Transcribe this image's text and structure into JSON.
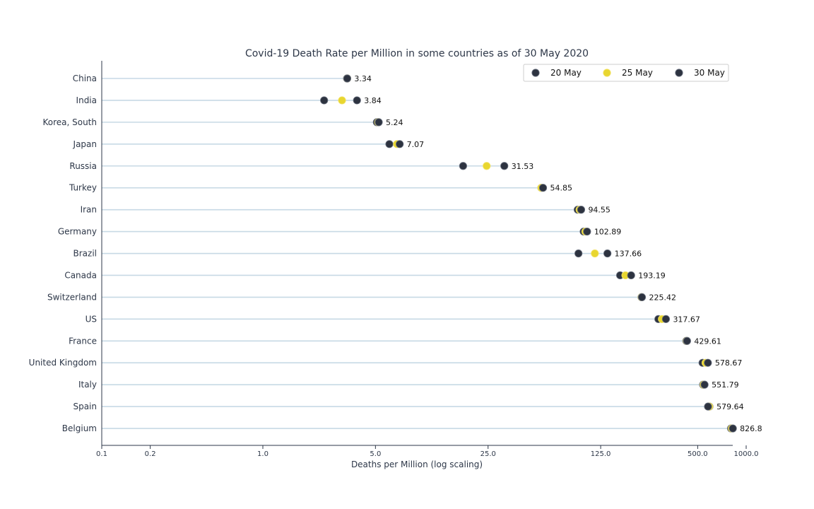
{
  "chart_data": {
    "type": "scatter",
    "title": "Covid-19 Death Rate per Million in some countries as of 30 May 2020",
    "xlabel": "Deaths per Million (log scaling)",
    "ylabel": "",
    "xscale": "log",
    "xlim": [
      0.1,
      1250
    ],
    "xticks": [
      0.1,
      0.2,
      1.0,
      5.0,
      25.0,
      125.0,
      500.0,
      1000.0
    ],
    "xtick_labels": [
      "0.1",
      "0.2",
      "1.0",
      "5.0",
      "25.0",
      "125.0",
      "500.0",
      "1000.0"
    ],
    "grid": "horizontal guide line per country",
    "legend_position": "top-right",
    "categories": [
      "China",
      "India",
      "Korea, South",
      "Japan",
      "Russia",
      "Turkey",
      "Iran",
      "Germany",
      "Brazil",
      "Canada",
      "Switzerland",
      "US",
      "France",
      "United Kingdom",
      "Italy",
      "Spain",
      "Belgium"
    ],
    "series": [
      {
        "name": "20 May",
        "color": "#2d3340",
        "values": [
          3.33,
          2.4,
          5.1,
          6.1,
          17.5,
          53.5,
          90.0,
          98.0,
          91.0,
          165.0,
          224.0,
          285.0,
          425.0,
          536.0,
          540.0,
          592.0,
          805.0
        ]
      },
      {
        "name": "25 May",
        "color": "#e8d630",
        "values": [
          3.34,
          3.1,
          5.2,
          6.8,
          24.5,
          53.5,
          92.5,
          100.5,
          115.0,
          178.0,
          224.5,
          300.0,
          428.0,
          560.0,
          545.0,
          590.0,
          815.0
        ]
      },
      {
        "name": "30 May",
        "color": "#2d3340",
        "values": [
          3.34,
          3.84,
          5.24,
          7.07,
          31.53,
          54.85,
          94.55,
          102.89,
          137.66,
          193.19,
          225.42,
          317.67,
          429.61,
          578.67,
          551.79,
          579.64,
          826.8
        ]
      }
    ],
    "data_labels": [
      "3.34",
      "3.84",
      "5.24",
      "7.07",
      "31.53",
      "54.85",
      "94.55",
      "102.89",
      "137.66",
      "193.19",
      "225.42",
      "317.67",
      "429.61",
      "578.67",
      "551.79",
      "579.64",
      "826.8"
    ],
    "colors": {
      "guide_line": "#c7d9e5",
      "axis": "#2d3748"
    }
  }
}
